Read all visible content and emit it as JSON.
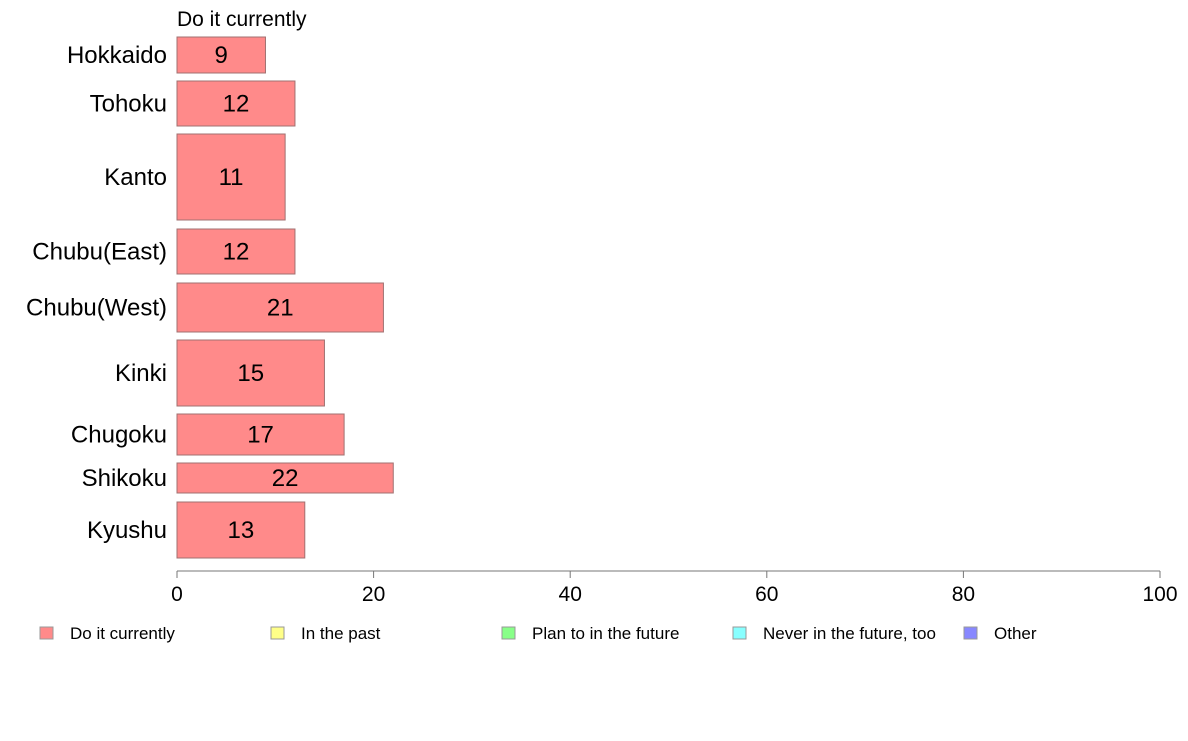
{
  "chart_data": {
    "type": "bar",
    "orientation": "horizontal",
    "stacked": true,
    "top_label": "Do it currently",
    "categories": [
      "Hokkaido",
      "Tohoku",
      "Kanto",
      "Chubu(East)",
      "Chubu(West)",
      "Kinki",
      "Chugoku",
      "Shikoku",
      "Kyushu"
    ],
    "series": [
      {
        "name": "Do it currently",
        "color": "#ff8a8a",
        "values": [
          9,
          12,
          11,
          12,
          21,
          15,
          17,
          22,
          13
        ],
        "labels": [
          "9",
          "12",
          "11",
          "12",
          "21",
          "15",
          "17",
          "22",
          "13"
        ]
      },
      {
        "name": "In the past",
        "color": "#ffff88",
        "values": [
          0,
          0,
          0,
          0,
          0,
          0,
          0,
          0,
          0
        ]
      },
      {
        "name": "Plan to in the future",
        "color": "#88ff88",
        "values": [
          0,
          0,
          0,
          0,
          0,
          0,
          0,
          0,
          0
        ]
      },
      {
        "name": "Never in the future, too",
        "color": "#88ffff",
        "values": [
          0,
          0,
          0,
          0,
          0,
          0,
          0,
          0,
          0
        ]
      },
      {
        "name": "Other",
        "color": "#8888ff",
        "values": [
          0,
          0,
          0,
          0,
          0,
          0,
          0,
          0,
          0
        ]
      }
    ],
    "xlim": [
      0,
      100
    ],
    "xticks": [
      "0",
      "20",
      "40",
      "60",
      "80",
      "100"
    ],
    "xlabel": "",
    "ylabel": "",
    "grid": false,
    "legend_position": "bottom"
  }
}
